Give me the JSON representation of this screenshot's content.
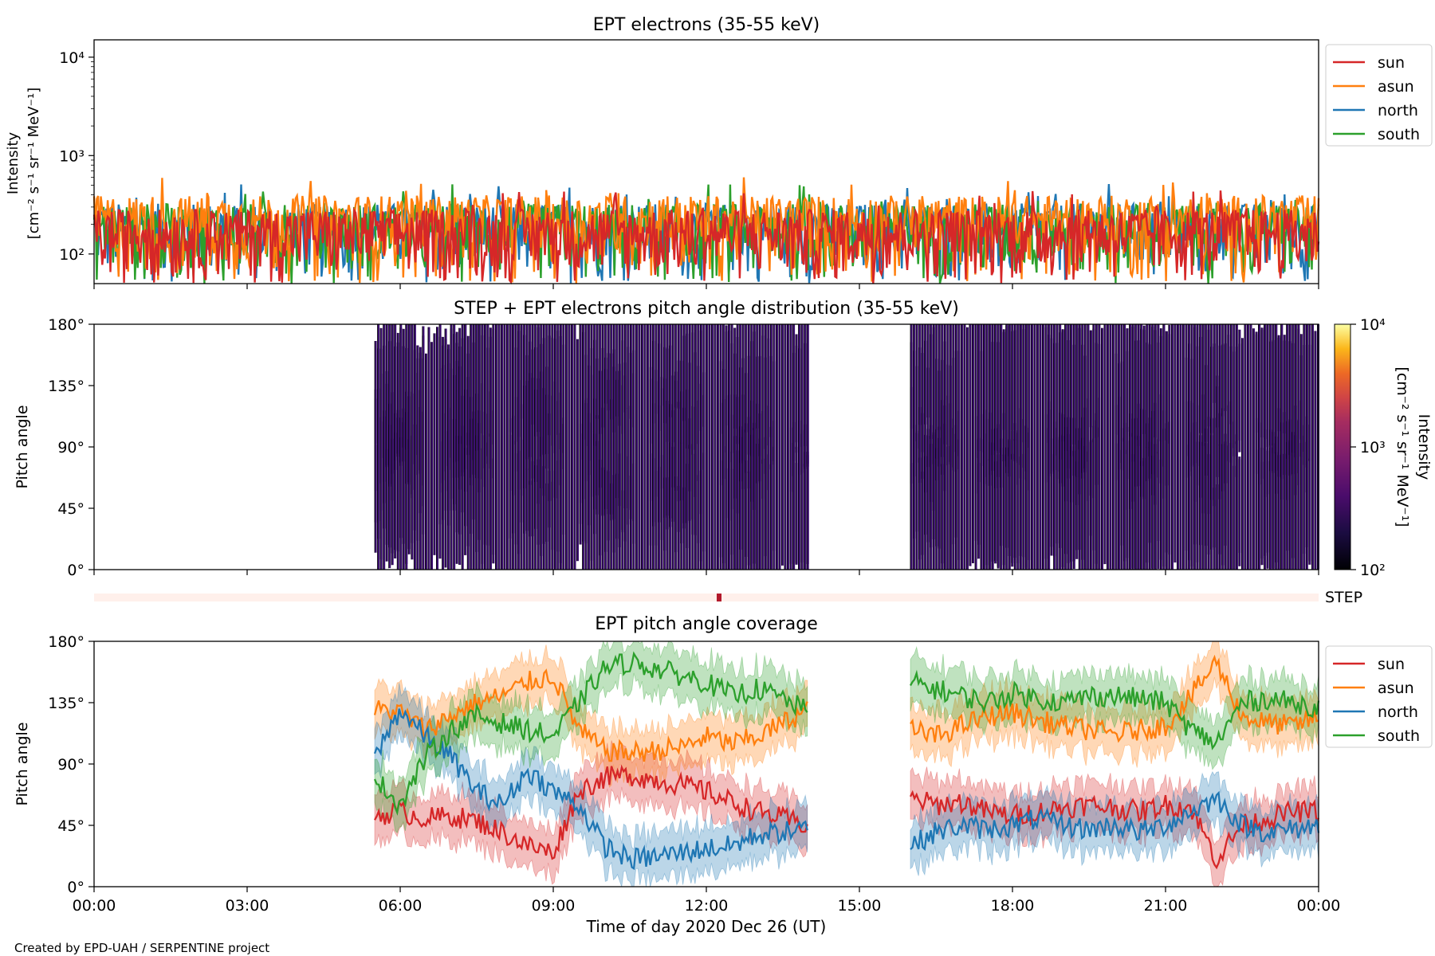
{
  "footer_credit": "Created by EPD-UAH / SERPENTINE project",
  "colors": {
    "sun": "#d62728",
    "asun": "#ff7f0e",
    "north": "#1f77b4",
    "south": "#2ca02c",
    "pad_cells": "#3b0f6f",
    "step_bar_bg": "#fff0eb",
    "step_bar_mark": "#b2182b"
  },
  "chart_data": [
    {
      "type": "line",
      "title": "EPT electrons (35-55 keV)",
      "ylabel": "Intensity",
      "yunit": "[cm⁻² s⁻¹ sr⁻¹ MeV⁻¹]",
      "yscale": "log",
      "ylim": [
        50,
        15000
      ],
      "yticks": [
        {
          "value": 100,
          "label": "10²"
        },
        {
          "value": 1000,
          "label": "10³"
        },
        {
          "value": 10000,
          "label": "10⁴"
        }
      ],
      "xlim_hours": [
        0,
        24
      ],
      "typical_range": [
        50,
        600
      ],
      "series": [
        {
          "name": "sun",
          "color": "#d62728"
        },
        {
          "name": "asun",
          "color": "#ff7f0e"
        },
        {
          "name": "north",
          "color": "#1f77b4"
        },
        {
          "name": "south",
          "color": "#2ca02c"
        }
      ],
      "legend_position": "upper-right-outside"
    },
    {
      "type": "heatmap",
      "title": "STEP + EPT electrons pitch angle distribution (35-55 keV)",
      "ylabel": "Pitch angle",
      "ylim": [
        0,
        180
      ],
      "yticks": [
        "0°",
        "45°",
        "90°",
        "135°",
        "180°"
      ],
      "colorbar": {
        "label": "Intensity",
        "unit": "[cm⁻² s⁻¹ sr⁻¹ MeV⁻¹]",
        "ticks": [
          "10²",
          "10³",
          "10⁴"
        ],
        "range": [
          100,
          10000
        ],
        "scale": "log"
      },
      "data_intervals_hours": [
        [
          5.5,
          14.0
        ],
        [
          16.0,
          24.0
        ]
      ],
      "step_label": "STEP",
      "step_marker_hour": 12.25
    },
    {
      "type": "area",
      "title": "EPT pitch angle coverage",
      "ylabel": "Pitch angle",
      "ylim": [
        0,
        180
      ],
      "yticks": [
        "0°",
        "45°",
        "90°",
        "135°",
        "180°"
      ],
      "xlabel": "Time of day 2020 Dec 26 (UT)",
      "xticks": [
        "00:00",
        "03:00",
        "06:00",
        "09:00",
        "12:00",
        "15:00",
        "18:00",
        "21:00",
        "00:00"
      ],
      "x_hours": [
        5.5,
        6.0,
        6.5,
        7.0,
        7.5,
        8.0,
        8.5,
        9.0,
        9.5,
        10.0,
        10.5,
        11.0,
        11.5,
        12.0,
        12.5,
        13.0,
        13.5,
        14.0,
        16.0,
        16.5,
        17.0,
        17.5,
        18.0,
        18.5,
        19.0,
        19.5,
        20.0,
        20.5,
        21.0,
        21.5,
        22.0,
        22.5,
        23.0,
        23.5,
        24.0
      ],
      "series": [
        {
          "name": "sun",
          "color": "#d62728",
          "values": [
            52,
            55,
            50,
            52,
            48,
            40,
            30,
            25,
            70,
            80,
            82,
            78,
            75,
            70,
            62,
            55,
            50,
            45,
            65,
            60,
            62,
            55,
            52,
            55,
            58,
            60,
            58,
            55,
            60,
            58,
            20,
            45,
            50,
            55,
            55
          ]
        },
        {
          "name": "asun",
          "color": "#ff7f0e",
          "values": [
            130,
            128,
            115,
            125,
            135,
            140,
            150,
            155,
            115,
            100,
            98,
            100,
            102,
            110,
            105,
            110,
            120,
            130,
            115,
            110,
            118,
            125,
            128,
            122,
            118,
            115,
            112,
            115,
            118,
            140,
            165,
            125,
            120,
            118,
            125
          ]
        },
        {
          "name": "north",
          "color": "#1f77b4",
          "values": [
            95,
            130,
            110,
            95,
            70,
            60,
            85,
            70,
            60,
            30,
            20,
            22,
            25,
            28,
            30,
            38,
            40,
            42,
            30,
            40,
            45,
            42,
            45,
            50,
            45,
            42,
            45,
            40,
            45,
            55,
            65,
            45,
            40,
            42,
            45
          ]
        },
        {
          "name": "south",
          "color": "#2ca02c",
          "values": [
            80,
            60,
            95,
            115,
            125,
            120,
            115,
            110,
            135,
            160,
            165,
            160,
            155,
            150,
            140,
            145,
            138,
            128,
            150,
            145,
            140,
            135,
            142,
            138,
            135,
            140,
            140,
            138,
            135,
            115,
            105,
            135,
            138,
            135,
            132
          ]
        }
      ],
      "legend_position": "upper-right-outside"
    }
  ]
}
